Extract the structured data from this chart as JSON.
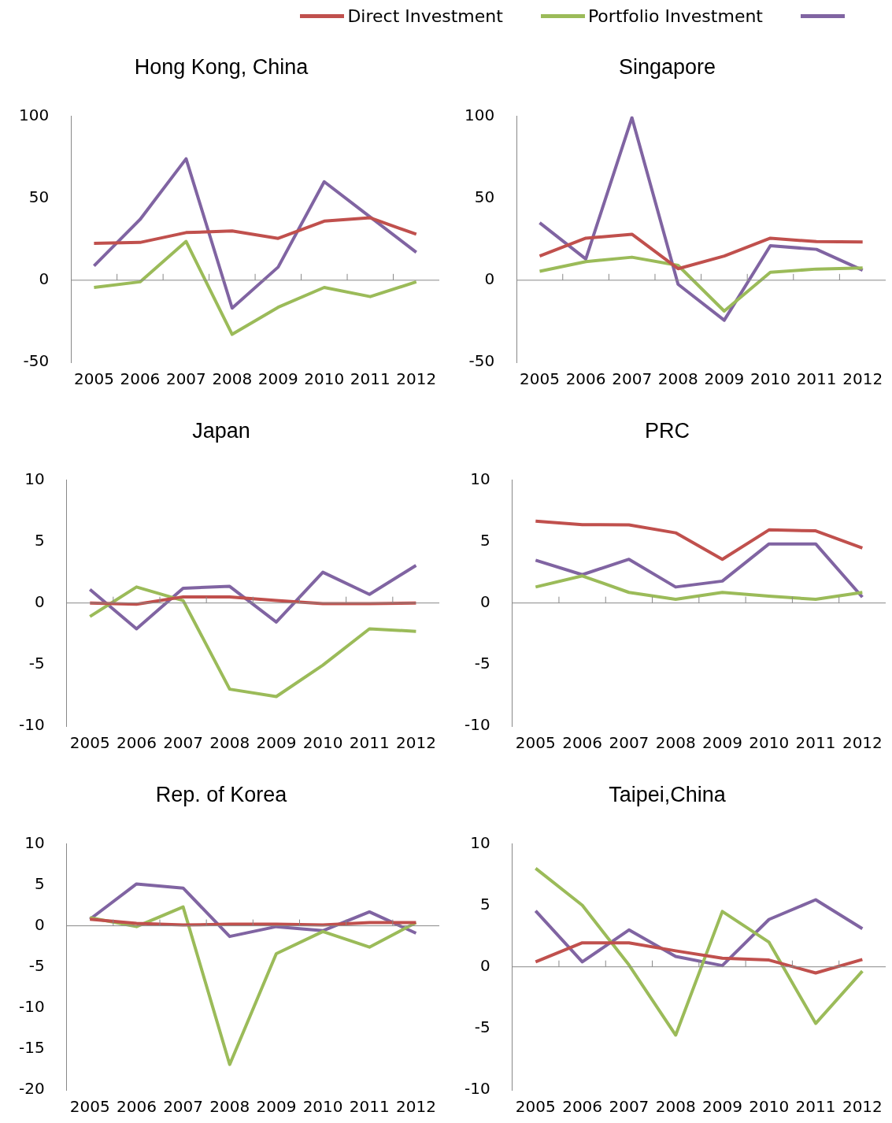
{
  "chart_data": [
    {
      "type": "line",
      "title": "Hong Kong, China",
      "categories": [
        "2005",
        "2006",
        "2007",
        "2008",
        "2009",
        "2010",
        "2011",
        "2012"
      ],
      "ylim": [
        -50,
        100
      ],
      "yticks": [
        -50,
        0,
        50,
        100
      ],
      "legend": "top",
      "series": [
        {
          "name": "Direct Investment",
          "color": "#c0504d",
          "values": [
            22.5,
            23,
            29,
            30,
            25.5,
            36,
            38,
            28
          ]
        },
        {
          "name": "Portfolio Investment",
          "color": "#9bbb59",
          "values": [
            -4.4,
            -1,
            23.6,
            -33,
            -16.5,
            -4.4,
            -10,
            -1
          ]
        },
        {
          "color": "#8064a2",
          "values": [
            8.7,
            37,
            74,
            -17,
            8,
            60,
            38.5,
            17
          ]
        }
      ]
    },
    {
      "type": "line",
      "title": "Singapore",
      "categories": [
        "2005",
        "2006",
        "2007",
        "2008",
        "2009",
        "2010",
        "2011",
        "2012"
      ],
      "ylim": [
        -50,
        100
      ],
      "yticks": [
        -50,
        0,
        50,
        100
      ],
      "series": [
        {
          "color": "#c0504d",
          "values": [
            14.7,
            25.6,
            28,
            7,
            14.7,
            25.6,
            23.5,
            23.3
          ]
        },
        {
          "color": "#9bbb59",
          "values": [
            5.4,
            11.3,
            14,
            9,
            -18.8,
            4.8,
            6.8,
            7.5
          ]
        },
        {
          "color": "#8064a2",
          "values": [
            35,
            12.9,
            99,
            -2.5,
            -24.4,
            21,
            18.8,
            6.1
          ]
        }
      ]
    },
    {
      "type": "line",
      "title": "Japan",
      "categories": [
        "2005",
        "2006",
        "2007",
        "2008",
        "2009",
        "2010",
        "2011",
        "2012"
      ],
      "ylim": [
        -10,
        10
      ],
      "yticks": [
        -10,
        -5,
        0,
        5,
        10
      ],
      "series": [
        {
          "color": "#c0504d",
          "values": [
            0,
            -0.1,
            0.5,
            0.5,
            0.2,
            -0.05,
            -0.05,
            0
          ]
        },
        {
          "color": "#9bbb59",
          "values": [
            -1.1,
            1.3,
            0.2,
            -7.0,
            -7.6,
            -5.05,
            -2.1,
            -2.3
          ]
        },
        {
          "color": "#8064a2",
          "values": [
            1.1,
            -2.1,
            1.2,
            1.35,
            -1.55,
            2.5,
            0.7,
            3.05
          ]
        }
      ]
    },
    {
      "type": "line",
      "title": "PRC",
      "categories": [
        "2005",
        "2006",
        "2007",
        "2008",
        "2009",
        "2010",
        "2011",
        "2012"
      ],
      "ylim": [
        -10,
        10
      ],
      "yticks": [
        -10,
        -5,
        0,
        5,
        10
      ],
      "series": [
        {
          "color": "#c0504d",
          "values": [
            6.65,
            6.37,
            6.35,
            5.7,
            3.55,
            5.94,
            5.86,
            4.47
          ]
        },
        {
          "color": "#9bbb59",
          "values": [
            1.3,
            2.2,
            0.86,
            0.3,
            0.86,
            0.56,
            0.3,
            0.86
          ]
        },
        {
          "color": "#8064a2",
          "values": [
            3.48,
            2.3,
            3.55,
            1.3,
            1.78,
            4.8,
            4.8,
            0.48
          ]
        }
      ]
    },
    {
      "type": "line",
      "title": "Rep. of Korea",
      "categories": [
        "2005",
        "2006",
        "2007",
        "2008",
        "2009",
        "2010",
        "2011",
        "2012"
      ],
      "ylim": [
        -20,
        10
      ],
      "yticks": [
        -20,
        -15,
        -10,
        -5,
        0,
        5,
        10
      ],
      "series": [
        {
          "color": "#c0504d",
          "values": [
            0.8,
            0.3,
            0.1,
            0.2,
            0.2,
            0.1,
            0.4,
            0.4
          ]
        },
        {
          "color": "#9bbb59",
          "values": [
            1.0,
            -0.1,
            2.3,
            -16.9,
            -3.4,
            -0.7,
            -2.6,
            0.4
          ]
        },
        {
          "color": "#8064a2",
          "values": [
            0.8,
            5.1,
            4.6,
            -1.3,
            -0.1,
            -0.6,
            1.7,
            -0.9
          ]
        }
      ]
    },
    {
      "type": "line",
      "title": "Taipei,China",
      "categories": [
        "2005",
        "2006",
        "2007",
        "2008",
        "2009",
        "2010",
        "2011",
        "2012"
      ],
      "ylim": [
        -10,
        10
      ],
      "yticks": [
        -10,
        -5,
        0,
        5,
        10
      ],
      "series": [
        {
          "color": "#c0504d",
          "values": [
            0.4,
            1.95,
            1.95,
            1.3,
            0.7,
            0.55,
            -0.5,
            0.6
          ]
        },
        {
          "color": "#9bbb59",
          "values": [
            8.0,
            5.0,
            0.15,
            -5.55,
            4.5,
            2.0,
            -4.6,
            -0.35
          ]
        },
        {
          "color": "#8064a2",
          "values": [
            4.55,
            0.4,
            3.0,
            0.85,
            0.1,
            3.85,
            5.45,
            3.1
          ]
        }
      ]
    }
  ]
}
